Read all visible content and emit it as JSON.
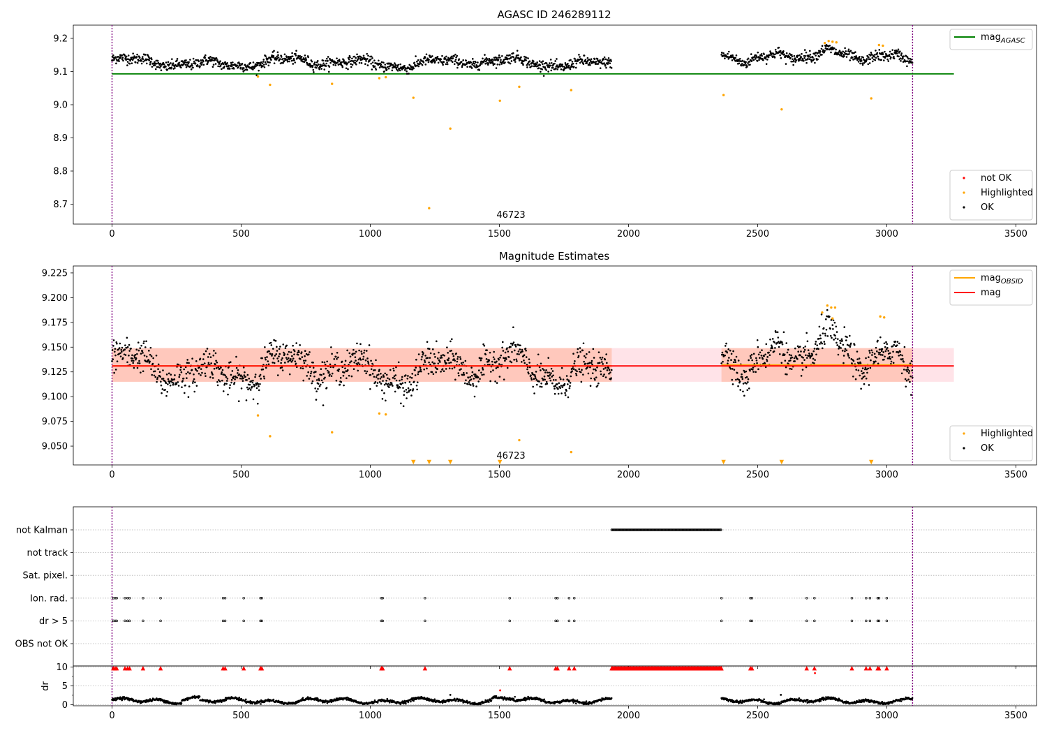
{
  "chart_data": [
    {
      "type": "scatter",
      "title": "AGASC ID 246289112",
      "annotation": "46723",
      "xlim": [
        -150,
        3580
      ],
      "ylim": [
        8.64,
        9.24
      ],
      "x_ticks": [
        0,
        500,
        1000,
        1500,
        2000,
        2500,
        3000,
        3500
      ],
      "y_ticks": [
        8.7,
        8.8,
        8.9,
        9.0,
        9.1,
        9.2
      ],
      "grid": false,
      "vlines": [
        0,
        3100
      ],
      "lines": [
        {
          "name": "mag_AGASC",
          "label_main": "mag",
          "label_sub": "AGASC",
          "color": "#008000",
          "y": 9.093,
          "x": [
            0,
            3260
          ]
        }
      ],
      "legends": [
        {
          "placement": "top-right",
          "entries": [
            {
              "label": "mag",
              "sub": "AGASC",
              "kind": "line",
              "color": "#008000"
            }
          ]
        },
        {
          "placement": "bottom-right",
          "entries": [
            {
              "label": "not OK",
              "kind": "point",
              "color": "#ff0000"
            },
            {
              "label": "Highlighted",
              "kind": "point",
              "color": "#ffa500"
            },
            {
              "label": "OK",
              "kind": "point",
              "color": "#000000"
            }
          ]
        }
      ],
      "series": [
        {
          "name": "OK",
          "color": "#000000",
          "generated": "ok_top",
          "segments": [
            [
              0,
              1935
            ],
            [
              2360,
              3100
            ]
          ]
        },
        {
          "name": "Highlighted",
          "color": "#ffa500",
          "points": [
            [
              565,
              9.085
            ],
            [
              612,
              9.06
            ],
            [
              852,
              9.063
            ],
            [
              1035,
              9.08
            ],
            [
              1060,
              9.083
            ],
            [
              1167,
              9.021
            ],
            [
              1310,
              8.928
            ],
            [
              1502,
              9.012
            ],
            [
              1577,
              9.054
            ],
            [
              1778,
              9.044
            ],
            [
              2368,
              9.029
            ],
            [
              2593,
              8.986
            ],
            [
              2940,
              9.019
            ],
            [
              1228,
              8.688
            ],
            [
              2760,
              9.186
            ],
            [
              2775,
              9.192
            ],
            [
              2790,
              9.19
            ],
            [
              2805,
              9.188
            ],
            [
              2970,
              9.18
            ],
            [
              2985,
              9.178
            ]
          ]
        }
      ]
    },
    {
      "type": "scatter",
      "title": "Magnitude Estimates",
      "annotation": "46723",
      "xlim": [
        -150,
        3580
      ],
      "ylim": [
        9.031,
        9.232
      ],
      "x_ticks": [
        0,
        500,
        1000,
        1500,
        2000,
        2500,
        3000,
        3500
      ],
      "y_ticks": [
        9.05,
        9.075,
        9.1,
        9.125,
        9.15,
        9.175,
        9.2,
        9.225
      ],
      "grid": false,
      "vlines": [
        0,
        3100
      ],
      "bands": [
        {
          "x": [
            0,
            3260
          ],
          "y": [
            9.115,
            9.149
          ],
          "color": "#ffc0cb",
          "opacity": 0.45
        },
        {
          "x": [
            0,
            1935
          ],
          "y": [
            9.115,
            9.149
          ],
          "color": "#ffa07a",
          "opacity": 0.4
        },
        {
          "x": [
            2360,
            3100
          ],
          "y": [
            9.115,
            9.149
          ],
          "color": "#ffa07a",
          "opacity": 0.4
        }
      ],
      "lines": [
        {
          "name": "mag_OBSID",
          "color": "#ffa500",
          "segments": [
            [
              0,
              1935,
              9.131
            ],
            [
              2360,
              3100,
              9.132
            ]
          ]
        },
        {
          "name": "mag",
          "color": "#ff0000",
          "y": 9.131,
          "x": [
            0,
            3260
          ]
        }
      ],
      "legends": [
        {
          "placement": "top-right",
          "entries": [
            {
              "label": "mag",
              "sub": "OBSID",
              "kind": "line",
              "color": "#ffa500"
            },
            {
              "label": "mag",
              "kind": "line",
              "color": "#ff0000"
            }
          ]
        },
        {
          "placement": "bottom-right",
          "entries": [
            {
              "label": "Highlighted",
              "kind": "point",
              "color": "#ffa500"
            },
            {
              "label": "OK",
              "kind": "point",
              "color": "#000000"
            }
          ]
        }
      ],
      "series": [
        {
          "name": "OK",
          "color": "#000000",
          "generated": "ok_mid",
          "segments": [
            [
              0,
              1935
            ],
            [
              2360,
              3100
            ]
          ]
        },
        {
          "name": "Highlighted",
          "color": "#ffa500",
          "points": [
            [
              565,
              9.081
            ],
            [
              612,
              9.06
            ],
            [
              852,
              9.064
            ],
            [
              1035,
              9.083
            ],
            [
              1060,
              9.082
            ],
            [
              1577,
              9.056
            ],
            [
              1778,
              9.044
            ],
            [
              2750,
              9.185
            ],
            [
              2770,
              9.192
            ],
            [
              2785,
              9.19
            ],
            [
              2800,
              9.19
            ],
            [
              2790,
              9.179
            ],
            [
              2975,
              9.181
            ],
            [
              2990,
              9.18
            ]
          ]
        },
        {
          "name": "Highlighted (off-scale)",
          "color": "#ffa500",
          "marker": "triangle-down",
          "x": [
            1167,
            1228,
            1310,
            1502,
            2368,
            2593,
            2940
          ]
        }
      ]
    },
    {
      "type": "flags",
      "xlim": [
        -150,
        3580
      ],
      "x_ticks": [
        0,
        500,
        1000,
        1500,
        2000,
        2500,
        3000,
        3500
      ],
      "vlines": [
        0,
        3100
      ],
      "rows": [
        "not Kalman",
        "not track",
        "Sat. pixel.",
        "Ion. rad.",
        "dr > 5",
        "OBS not OK"
      ],
      "row_values": {
        "not Kalman": {
          "ranges": [
            [
              1935,
              2360
            ]
          ]
        },
        "not track": {
          "x": []
        },
        "Sat. pixel.": {
          "x": []
        },
        "Ion. rad.": {
          "x": [
            5,
            12,
            18,
            50,
            60,
            68,
            120,
            188,
            430,
            438,
            510,
            575,
            580,
            1043,
            1048,
            1212,
            1540,
            1718,
            1725,
            1770,
            1790,
            2360,
            2472,
            2478,
            2690,
            2720,
            2865,
            2920,
            2935,
            2965,
            2970,
            3000
          ]
        },
        "dr > 5": {
          "x": [
            5,
            12,
            18,
            50,
            60,
            68,
            120,
            188,
            430,
            438,
            510,
            575,
            580,
            1043,
            1048,
            1212,
            1540,
            1718,
            1725,
            1770,
            1790,
            2360,
            2472,
            2478,
            2690,
            2720,
            2865,
            2920,
            2935,
            2965,
            2970,
            3000
          ]
        },
        "OBS not OK": {
          "x": []
        }
      }
    },
    {
      "type": "scatter",
      "ylabel": "dr",
      "xlim": [
        -150,
        3580
      ],
      "ylim": [
        -0.3,
        10.3
      ],
      "x_ticks": [
        0,
        500,
        1000,
        1500,
        2000,
        2500,
        3000,
        3500
      ],
      "y_ticks": [
        0,
        5,
        10
      ],
      "grid": true,
      "vlines": [
        0,
        3100
      ],
      "series": [
        {
          "name": "dr",
          "color": "#000000",
          "generated": "dr",
          "segments": [
            [
              0,
              1935
            ],
            [
              2360,
              3100
            ]
          ]
        },
        {
          "name": "dr capped",
          "color": "#ff0000",
          "marker": "triangle-up",
          "level": 9.7,
          "x": [
            5,
            12,
            18,
            50,
            60,
            68,
            120,
            188,
            430,
            438,
            510,
            575,
            580,
            1043,
            1048,
            1212,
            1540,
            1718,
            1725,
            1770,
            1790,
            2360,
            2472,
            2478,
            2690,
            2720,
            2865,
            2920,
            2935,
            2965,
            2970,
            3000
          ],
          "range": [
            1935,
            2360
          ]
        },
        {
          "name": "dr outliers",
          "color": "#ff0000",
          "points": [
            [
              1503,
              3.8
            ],
            [
              2722,
              8.4
            ]
          ]
        },
        {
          "name": "dr outliers ok",
          "color": "#000000",
          "points": [
            [
              1310,
              2.6
            ],
            [
              2590,
              2.6
            ]
          ]
        }
      ]
    }
  ]
}
